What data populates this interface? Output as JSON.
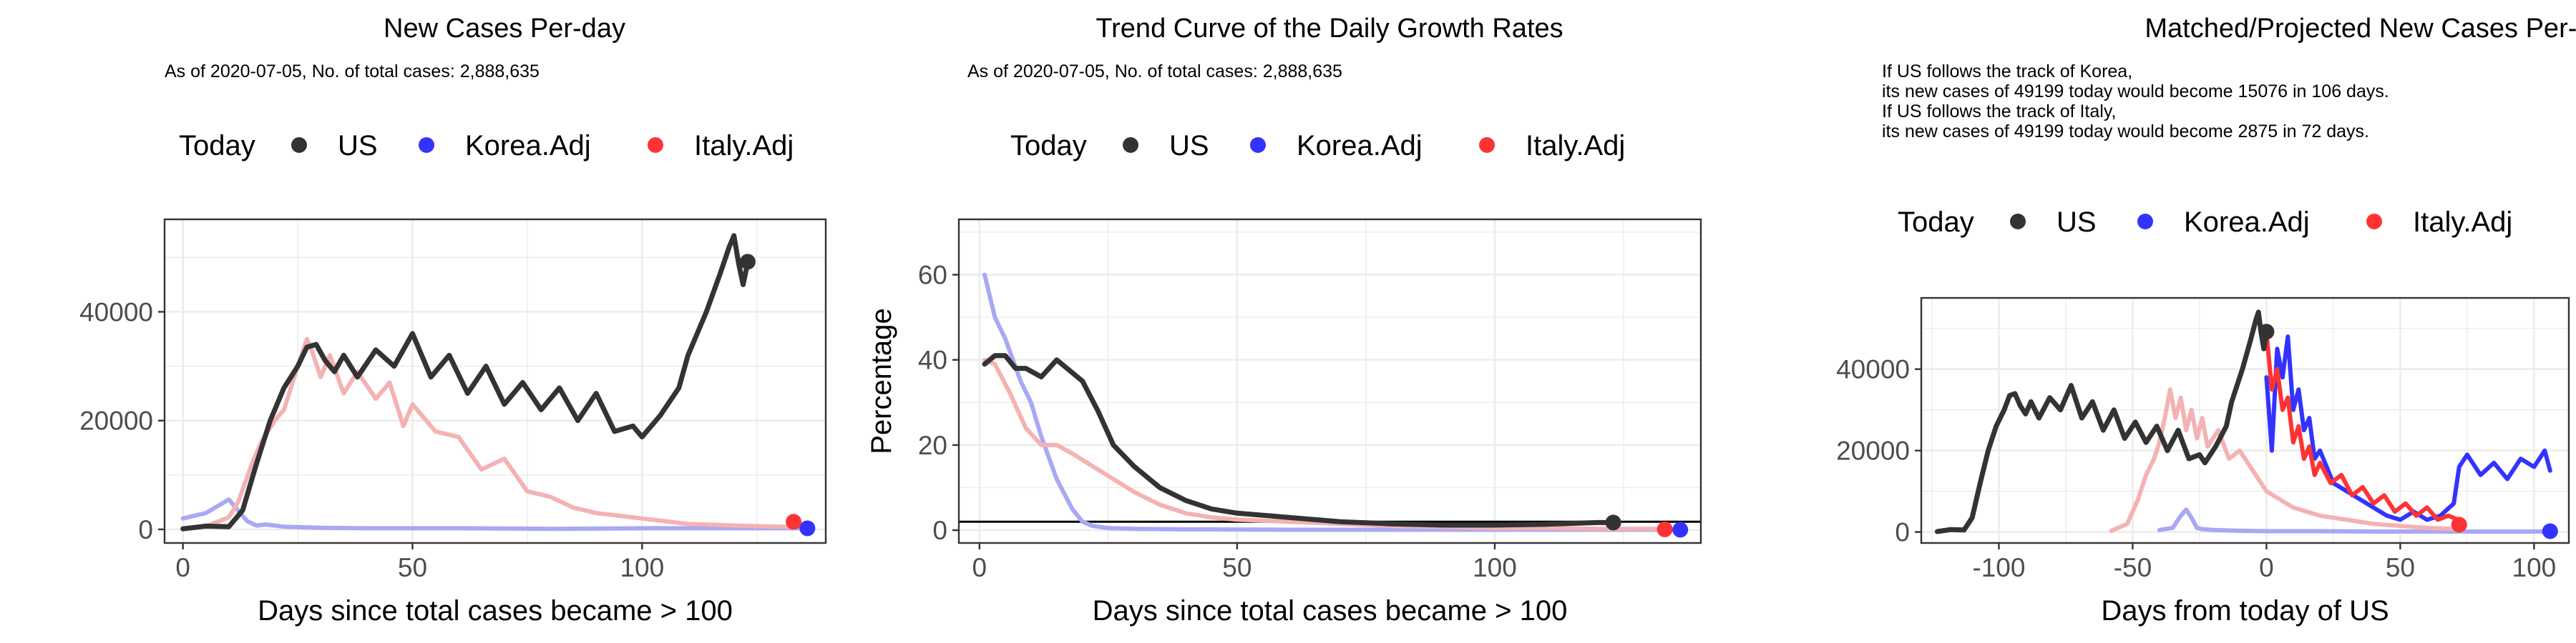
{
  "colors": {
    "us": "#333333",
    "korea": "#3333ff",
    "italy": "#ff3333",
    "korea_light": "#a8a8f4",
    "italy_light": "#f4b2b2",
    "grid": "#ebebeb",
    "axis_text": "#4d4d4d",
    "frame": "#333333"
  },
  "legend_labels": {
    "today": "Today",
    "us": "US",
    "korea": "Korea.Adj",
    "italy": "Italy.Adj"
  },
  "chart_data": [
    {
      "type": "line",
      "title": "New Cases Per-day",
      "subtitle": "As of 2020-07-05, No. of total cases: 2,888,635",
      "xlabel": "Days since total cases became > 100",
      "ylabel": "",
      "xlim": [
        -4,
        140
      ],
      "ylim": [
        -2500,
        57000
      ],
      "xticks": [
        0,
        50,
        100
      ],
      "xtick_labels": [
        "0",
        "50",
        "100"
      ],
      "yticks": [
        0,
        20000,
        40000
      ],
      "ytick_labels": [
        "0",
        "20000",
        "40000"
      ],
      "legend_position": "top",
      "grid": true,
      "series": [
        {
          "name": "US",
          "role": "us",
          "x": [
            0,
            5,
            10,
            13,
            16,
            19,
            22,
            25,
            27,
            29,
            31,
            33,
            35,
            38,
            42,
            46,
            50,
            54,
            58,
            62,
            66,
            70,
            74,
            78,
            82,
            86,
            90,
            94,
            98,
            100,
            104,
            108,
            110,
            114,
            117,
            119,
            120,
            121,
            122,
            123
          ],
          "y": [
            100,
            600,
            500,
            3500,
            12000,
            20000,
            26000,
            30000,
            33500,
            34000,
            31000,
            29000,
            32000,
            28000,
            33000,
            30000,
            36000,
            28000,
            32000,
            25000,
            30000,
            23000,
            27000,
            22000,
            26000,
            20000,
            25000,
            18000,
            19000,
            17000,
            21000,
            26000,
            32000,
            40000,
            47000,
            52000,
            54000,
            49000,
            45000,
            49000
          ]
        },
        {
          "name": "Korea.Adj",
          "role": "korea",
          "x": [
            0,
            5,
            8,
            10,
            12,
            14,
            16,
            18,
            22,
            30,
            40,
            60,
            80,
            100,
            120,
            136
          ],
          "y": [
            2000,
            3000,
            4500,
            5500,
            3500,
            1500,
            700,
            900,
            500,
            300,
            200,
            200,
            100,
            200,
            200,
            200
          ]
        },
        {
          "name": "Italy.Adj",
          "role": "italy",
          "x": [
            0,
            5,
            10,
            12,
            15,
            17,
            20,
            22,
            25,
            27,
            28,
            30,
            32,
            35,
            38,
            42,
            45,
            48,
            50,
            55,
            60,
            65,
            70,
            75,
            80,
            85,
            90,
            100,
            110,
            120,
            130,
            133
          ],
          "y": [
            200,
            600,
            2200,
            5000,
            12000,
            16000,
            20000,
            22000,
            30000,
            35000,
            33000,
            28000,
            32000,
            25000,
            29000,
            24000,
            27000,
            19000,
            23000,
            18000,
            17000,
            11000,
            13000,
            7000,
            6000,
            4000,
            3000,
            2000,
            1000,
            700,
            500,
            500
          ]
        }
      ],
      "today_points": [
        {
          "name": "US",
          "role": "us",
          "x": 123,
          "y": 49199
        },
        {
          "name": "Korea.Adj",
          "role": "korea",
          "x": 136,
          "y": 200
        },
        {
          "name": "Italy.Adj",
          "role": "italy",
          "x": 133,
          "y": 1400
        }
      ]
    },
    {
      "type": "line",
      "title": "Trend Curve of the Daily Growth Rates",
      "subtitle": "As of 2020-07-05, No. of total cases: 2,888,635",
      "xlabel": "Days since total cases became > 100",
      "ylabel": "Percentage",
      "xlim": [
        -4,
        140
      ],
      "ylim": [
        -3,
        73
      ],
      "xticks": [
        0,
        50,
        100
      ],
      "xtick_labels": [
        "0",
        "50",
        "100"
      ],
      "yticks": [
        0,
        20,
        40,
        60
      ],
      "ytick_labels": [
        "0",
        "20",
        "40",
        "60"
      ],
      "reference_line": 2,
      "legend_position": "top",
      "grid": true,
      "series": [
        {
          "name": "US",
          "role": "us",
          "x": [
            1,
            3,
            5,
            7,
            9,
            12,
            15,
            18,
            20,
            23,
            26,
            30,
            35,
            40,
            45,
            50,
            60,
            70,
            80,
            90,
            100,
            110,
            120,
            123
          ],
          "y": [
            39,
            41,
            41,
            38,
            38,
            36,
            40,
            37,
            35,
            28,
            20,
            15,
            10,
            7,
            5,
            4,
            3,
            2,
            1.5,
            1.2,
            1.2,
            1.4,
            1.8,
            1.8
          ]
        },
        {
          "name": "Korea.Adj",
          "role": "korea",
          "x": [
            1,
            3,
            5,
            8,
            10,
            12,
            15,
            18,
            20,
            22,
            25,
            30,
            40,
            60,
            80,
            100,
            120,
            136
          ],
          "y": [
            60,
            50,
            45,
            35,
            30,
            22,
            12,
            5,
            2,
            1,
            0.5,
            0.3,
            0.2,
            0.1,
            0.1,
            0.1,
            0.1,
            0.1
          ]
        },
        {
          "name": "Italy.Adj",
          "role": "italy",
          "x": [
            1,
            3,
            6,
            9,
            12,
            15,
            18,
            22,
            26,
            30,
            35,
            40,
            45,
            50,
            60,
            70,
            80,
            90,
            100,
            110,
            120,
            133
          ],
          "y": [
            40,
            39,
            32,
            24,
            20,
            20,
            18,
            15,
            12,
            9,
            6,
            4,
            3,
            2.5,
            2,
            1.5,
            1,
            0.8,
            0.5,
            0.5,
            0.3,
            0.3
          ]
        }
      ],
      "today_points": [
        {
          "name": "US",
          "role": "us",
          "x": 123,
          "y": 1.8
        },
        {
          "name": "Korea.Adj",
          "role": "korea",
          "x": 136,
          "y": 0.1
        },
        {
          "name": "Italy.Adj",
          "role": "italy",
          "x": 133,
          "y": 0.2
        }
      ]
    },
    {
      "type": "line",
      "title": "Matched/Projected New Cases Per-day",
      "subtitle": "If US follows the track of Korea,\nits new cases of 49199 today would become 15076 in 106 days.\nIf US follows the track of Italy,\nits new cases of 49199 today would become 2875 in 72 days.",
      "xlabel": "Days from today of US",
      "ylabel": "",
      "xlim": [
        -129,
        113
      ],
      "ylim": [
        -2700,
        57500
      ],
      "xticks": [
        -100,
        -50,
        0,
        50,
        100
      ],
      "xtick_labels": [
        "-100",
        "-50",
        "0",
        "50",
        "100"
      ],
      "yticks": [
        0,
        20000,
        40000
      ],
      "ytick_labels": [
        "0",
        "20000",
        "40000"
      ],
      "legend_position": "top",
      "grid": true,
      "series": [
        {
          "name": "US",
          "role": "us",
          "x": [
            -123,
            -118,
            -113,
            -110,
            -107,
            -104,
            -101,
            -98,
            -96,
            -94,
            -92,
            -90,
            -88,
            -85,
            -81,
            -77,
            -73,
            -69,
            -65,
            -61,
            -57,
            -53,
            -49,
            -45,
            -41,
            -37,
            -33,
            -29,
            -25,
            -23,
            -19,
            -15,
            -13,
            -9,
            -6,
            -4,
            -3,
            -2,
            -1,
            0
          ],
          "y": [
            100,
            600,
            500,
            3500,
            12000,
            20000,
            26000,
            30000,
            33500,
            34000,
            31000,
            29000,
            32000,
            28000,
            33000,
            30000,
            36000,
            28000,
            32000,
            25000,
            30000,
            23000,
            27000,
            22000,
            26000,
            20000,
            25000,
            18000,
            19000,
            17000,
            21000,
            26000,
            32000,
            40000,
            47000,
            52000,
            54000,
            49000,
            45000,
            49000
          ]
        },
        {
          "name": "Korea.Adj",
          "role": "korea",
          "subtype": "history",
          "x": [
            -40,
            -35,
            -32,
            -30,
            -28,
            -26,
            -24,
            -20,
            -10,
            0,
            20,
            40,
            60,
            80,
            100,
            106
          ],
          "y": [
            500,
            1000,
            4000,
            5500,
            3500,
            1000,
            700,
            500,
            300,
            200,
            200,
            100,
            100,
            100,
            100,
            100
          ]
        },
        {
          "name": "Italy.Adj",
          "role": "italy",
          "subtype": "history",
          "x": [
            -58,
            -52,
            -48,
            -45,
            -42,
            -40,
            -38,
            -36,
            -34,
            -32,
            -30,
            -28,
            -26,
            -24,
            -22,
            -18,
            -14,
            -10,
            -5,
            -2,
            0,
            5,
            10,
            20,
            30,
            40,
            50,
            60,
            72
          ],
          "y": [
            300,
            2000,
            8000,
            14000,
            18000,
            22000,
            28000,
            35000,
            28000,
            33000,
            25000,
            30000,
            23000,
            28000,
            21000,
            25000,
            18000,
            20000,
            15000,
            12000,
            10000,
            8000,
            6000,
            4000,
            3000,
            2000,
            1500,
            1000,
            700
          ]
        },
        {
          "name": "Korea.Adj",
          "role": "korea",
          "subtype": "projection",
          "x": [
            0,
            2,
            4,
            6,
            8,
            10,
            12,
            14,
            16,
            18,
            20,
            25,
            30,
            35,
            40,
            45,
            50,
            55,
            60,
            65,
            70,
            72,
            75,
            80,
            85,
            90,
            95,
            100,
            104,
            106
          ],
          "y": [
            38000,
            20000,
            45000,
            38000,
            48000,
            30000,
            35000,
            25000,
            28000,
            18000,
            20000,
            12000,
            10000,
            8000,
            6000,
            4000,
            3000,
            5000,
            3000,
            4000,
            7000,
            16000,
            19000,
            14000,
            17000,
            13000,
            18000,
            16000,
            20000,
            15076
          ]
        },
        {
          "name": "Italy.Adj",
          "role": "italy",
          "subtype": "projection",
          "x": [
            0,
            2,
            4,
            6,
            8,
            10,
            12,
            14,
            16,
            18,
            20,
            24,
            28,
            32,
            36,
            40,
            44,
            48,
            52,
            56,
            60,
            64,
            68,
            72
          ],
          "y": [
            49000,
            35000,
            40000,
            30000,
            33000,
            22000,
            26000,
            18000,
            21000,
            14000,
            17000,
            12000,
            14000,
            9000,
            11000,
            7000,
            9000,
            5000,
            7000,
            4000,
            6000,
            3000,
            4000,
            2875
          ]
        }
      ],
      "today_points": [
        {
          "name": "US",
          "role": "us",
          "x": 0,
          "y": 49199
        },
        {
          "name": "Korea.Adj",
          "role": "korea",
          "x": 106,
          "y": 200
        },
        {
          "name": "Italy.Adj",
          "role": "italy",
          "x": 72,
          "y": 1800
        }
      ]
    }
  ]
}
